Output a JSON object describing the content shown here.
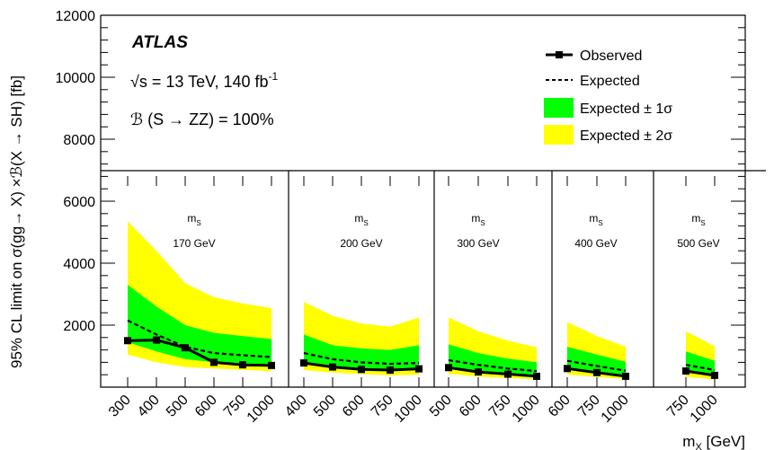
{
  "chart_data": {
    "type": "line",
    "title": "",
    "xlabel": "m_X [GeV]",
    "ylabel": "95% CL limit on σ(gg→ X) ×ℬ(X → SH) [fb]",
    "ylim": [
      0,
      12000
    ],
    "yticks": [
      2000,
      4000,
      6000,
      8000,
      10000,
      12000
    ],
    "annotations": {
      "experiment": "ATLAS",
      "energy_lumi": "√s = 13 TeV, 140 fb",
      "lumi_exponent": "-1",
      "branching": "ℬ (S → ZZ) = 100%"
    },
    "legend": {
      "position": "top-right",
      "observed": "Observed",
      "expected": "Expected",
      "band1": "Expected ± 1σ",
      "band2": "Expected ± 2σ"
    },
    "colors": {
      "band1": "#00ff00",
      "band2": "#ffff00",
      "observed": "#000000",
      "expected": "#000000"
    },
    "panels": [
      {
        "label_top": "m_S",
        "label_bottom": "170 GeV",
        "x": [
          300,
          400,
          500,
          600,
          750,
          1000
        ],
        "observed": [
          1500,
          1520,
          1270,
          800,
          720,
          700
        ],
        "expected": [
          2150,
          1700,
          1300,
          1100,
          1030,
          970
        ],
        "band1_low": [
          1450,
          1150,
          900,
          800,
          750,
          700
        ],
        "band1_high": [
          3300,
          2600,
          2000,
          1750,
          1650,
          1550
        ],
        "band2_low": [
          1050,
          800,
          650,
          600,
          560,
          520
        ],
        "band2_high": [
          5350,
          4400,
          3350,
          2900,
          2700,
          2550
        ]
      },
      {
        "label_top": "m_S",
        "label_bottom": "200 GeV",
        "x": [
          400,
          500,
          600,
          750,
          1000
        ],
        "observed": [
          780,
          650,
          570,
          550,
          590
        ],
        "expected": [
          1100,
          900,
          800,
          750,
          780
        ],
        "band1_low": [
          750,
          630,
          580,
          520,
          550
        ],
        "band1_high": [
          1700,
          1350,
          1250,
          1200,
          1350
        ],
        "band2_low": [
          550,
          470,
          420,
          380,
          400
        ],
        "band2_high": [
          2750,
          2300,
          2050,
          1950,
          2250
        ]
      },
      {
        "label_top": "m_S",
        "label_bottom": "300 GeV",
        "x": [
          500,
          600,
          750,
          1000
        ],
        "observed": [
          630,
          490,
          420,
          350
        ],
        "expected": [
          870,
          720,
          600,
          520
        ],
        "band1_low": [
          600,
          480,
          400,
          350
        ],
        "band1_high": [
          1380,
          1100,
          920,
          800
        ],
        "band2_low": [
          430,
          340,
          290,
          250
        ],
        "band2_high": [
          2250,
          1800,
          1500,
          1280
        ]
      },
      {
        "label_top": "m_S",
        "label_bottom": "400 GeV",
        "x": [
          600,
          750,
          1000
        ],
        "observed": [
          600,
          470,
          350
        ],
        "expected": [
          850,
          680,
          530
        ],
        "band1_low": [
          580,
          460,
          360
        ],
        "band1_high": [
          1300,
          1050,
          820
        ],
        "band2_low": [
          410,
          330,
          260
        ],
        "band2_high": [
          2100,
          1650,
          1300
        ]
      },
      {
        "label_top": "m_S",
        "label_bottom": "500 GeV",
        "x": [
          750,
          1000
        ],
        "observed": [
          520,
          380
        ],
        "expected": [
          720,
          550
        ],
        "band1_low": [
          480,
          360
        ],
        "band1_high": [
          1150,
          850
        ],
        "band2_low": [
          330,
          250
        ],
        "band2_high": [
          1800,
          1320
        ]
      }
    ]
  }
}
